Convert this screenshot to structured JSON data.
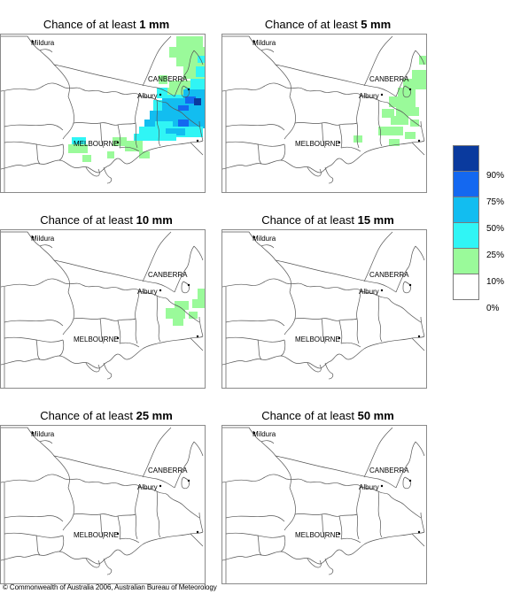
{
  "panels": [
    {
      "prefix": "Chance of at least ",
      "amount": "1 mm"
    },
    {
      "prefix": "Chance of at least ",
      "amount": "5 mm"
    },
    {
      "prefix": "Chance of at least ",
      "amount": "10 mm"
    },
    {
      "prefix": "Chance of at least ",
      "amount": "15 mm"
    },
    {
      "prefix": "Chance of at least ",
      "amount": "25 mm"
    },
    {
      "prefix": "Chance of at least ",
      "amount": "50 mm"
    }
  ],
  "places": {
    "mildura": "Mildura",
    "canberra": "CANBERRA",
    "albury": "Albury",
    "melbourne": "MELBOURNE"
  },
  "legend": {
    "labels": [
      "90%",
      "75%",
      "50%",
      "25%",
      "10%",
      "0%"
    ],
    "colors": [
      "#0a3a9e",
      "#1468f0",
      "#12bdf0",
      "#30f5f5",
      "#9afa9a",
      "#ffffff"
    ]
  },
  "colors": {
    "class_10": "#9afa9a",
    "class_25": "#30f5f5",
    "class_50": "#12bdf0",
    "class_75": "#1468f0",
    "class_90": "#0a3a9e"
  },
  "copyright": "© Commonwealth of Australia 2006, Australian Bureau of Meteorology"
}
